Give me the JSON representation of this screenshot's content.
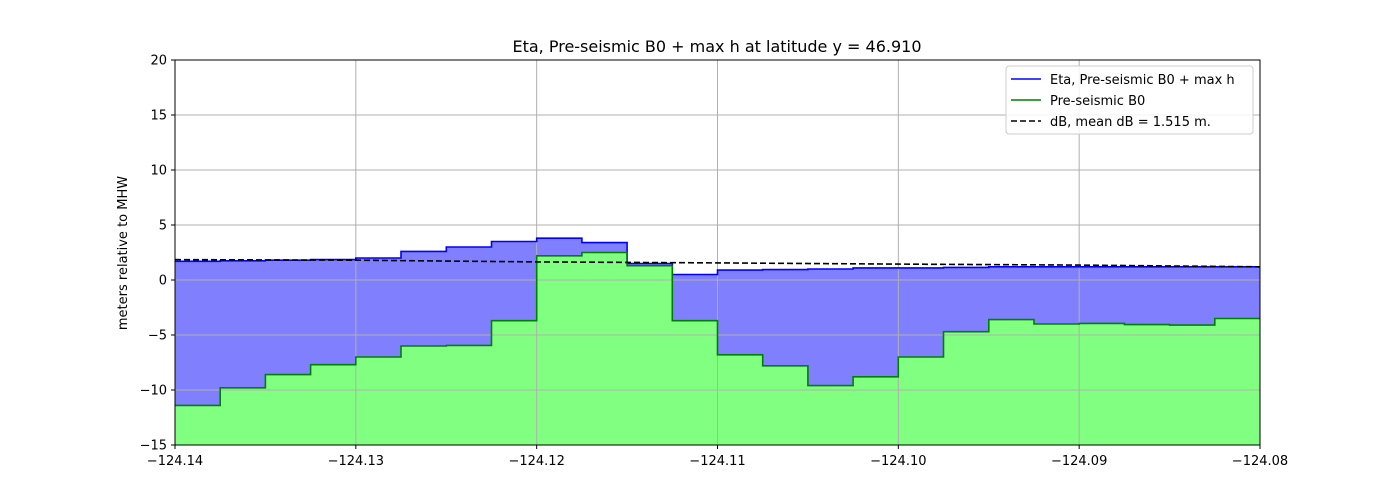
{
  "chart_data": {
    "type": "area",
    "title": "Eta, Pre-seismic B0 + max h at latitude y = 46.910",
    "xlabel": "",
    "ylabel": "meters relative to MHW",
    "xlim": [
      -124.14,
      -124.08
    ],
    "ylim": [
      -15,
      20
    ],
    "x_ticks": [
      -124.14,
      -124.13,
      -124.12,
      -124.11,
      -124.1,
      -124.09,
      -124.08
    ],
    "x_tick_labels": [
      "−124.14",
      "−124.13",
      "−124.12",
      "−124.11",
      "−124.10",
      "−124.09",
      "−124.08"
    ],
    "y_ticks": [
      -15,
      -10,
      -5,
      0,
      5,
      10,
      15,
      20
    ],
    "y_tick_labels": [
      "−15",
      "−10",
      "−5",
      "0",
      "5",
      "10",
      "15",
      "20"
    ],
    "grid": true,
    "legend_position": "top-right",
    "colors": {
      "eta_line": "#0000ff",
      "eta_fill": "#8080ff",
      "b0_line": "#008000",
      "b0_fill": "#80ff80",
      "db_line": "#000000",
      "grid": "#b0b0b0"
    },
    "legend": [
      "Eta, Pre-seismic B0 + max h",
      "Pre-seismic B0",
      "dB, mean dB = 1.515 m."
    ],
    "series": [
      {
        "name": "Eta, Pre-seismic B0 + max h",
        "style": "step",
        "x": [
          -124.14,
          -124.1375,
          -124.135,
          -124.1325,
          -124.13,
          -124.1275,
          -124.125,
          -124.1225,
          -124.12,
          -124.1175,
          -124.115,
          -124.1125,
          -124.11,
          -124.1075,
          -124.105,
          -124.1025,
          -124.1,
          -124.0975,
          -124.095,
          -124.0925,
          -124.09,
          -124.0875,
          -124.085,
          -124.0825,
          -124.08
        ],
        "y": [
          1.7,
          1.75,
          1.8,
          1.85,
          2.0,
          2.6,
          3.0,
          3.5,
          3.8,
          3.4,
          1.5,
          0.5,
          0.9,
          0.95,
          1.0,
          1.1,
          1.1,
          1.15,
          1.2,
          1.2,
          1.2,
          1.2,
          1.2,
          1.2,
          1.2
        ]
      },
      {
        "name": "Pre-seismic B0",
        "style": "step",
        "x": [
          -124.14,
          -124.1375,
          -124.135,
          -124.1325,
          -124.13,
          -124.1275,
          -124.125,
          -124.1225,
          -124.12,
          -124.1175,
          -124.115,
          -124.1125,
          -124.11,
          -124.1075,
          -124.105,
          -124.1025,
          -124.1,
          -124.0975,
          -124.095,
          -124.0925,
          -124.09,
          -124.0875,
          -124.085,
          -124.0825,
          -124.08
        ],
        "y": [
          -11.4,
          -9.8,
          -8.6,
          -7.7,
          -7.0,
          -6.0,
          -5.95,
          -3.7,
          2.2,
          2.5,
          1.3,
          -3.7,
          -6.8,
          -7.8,
          -9.6,
          -8.8,
          -7.0,
          -4.7,
          -3.6,
          -4.0,
          -3.95,
          -4.05,
          -4.1,
          -3.5,
          -3.5
        ]
      },
      {
        "name": "dB, mean dB = 1.515 m.",
        "style": "dashed",
        "x": [
          -124.14,
          -124.13,
          -124.12,
          -124.11,
          -124.1,
          -124.09,
          -124.08
        ],
        "y": [
          1.85,
          1.8,
          1.65,
          1.55,
          1.45,
          1.35,
          1.2
        ]
      }
    ]
  }
}
